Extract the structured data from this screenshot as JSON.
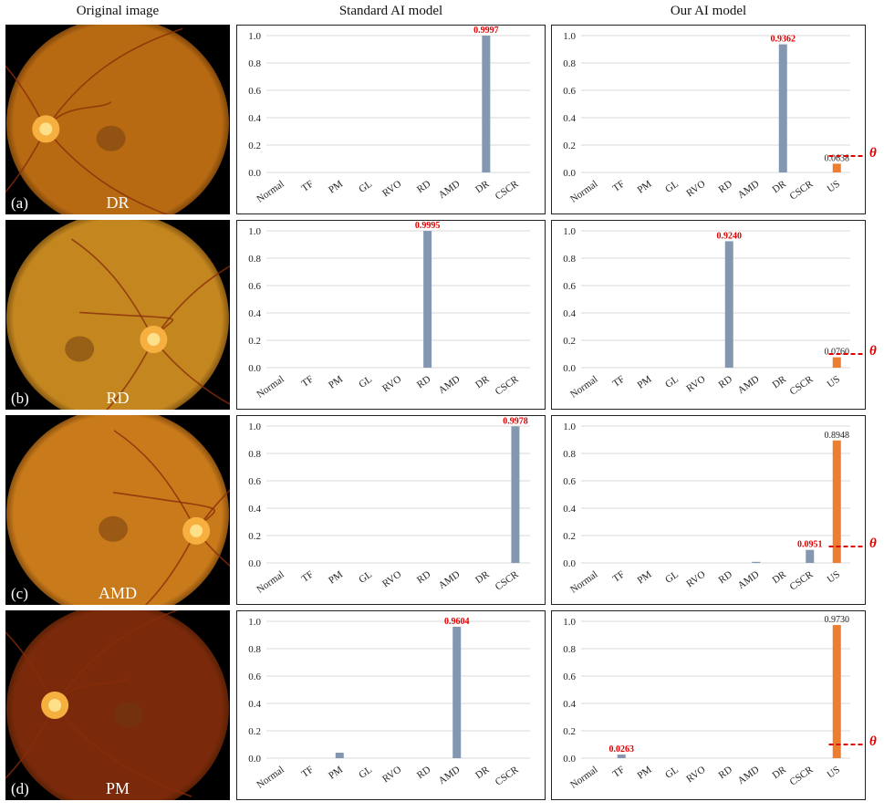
{
  "headers": {
    "original": "Original image",
    "standard": "Standard AI model",
    "ours": "Our AI model"
  },
  "colors": {
    "bar_standard": "#8497b0",
    "bar_unseen": "#ed7d31",
    "label_highlight": "#e00000",
    "threshold": "#e00000",
    "gridline": "#d9d9d9"
  },
  "threshold_symbol": "θ",
  "rows": [
    {
      "tag": "(a)",
      "diagnosis": "DR",
      "fundus": {
        "bg": "#b86a12",
        "disc_cx": 0.18,
        "disc_cy": 0.55,
        "macula_cx": 0.47,
        "macula_cy": 0.6
      }
    },
    {
      "tag": "(b)",
      "diagnosis": "RD",
      "fundus": {
        "bg": "#c4871f",
        "disc_cx": 0.66,
        "disc_cy": 0.63,
        "macula_cx": 0.33,
        "macula_cy": 0.68
      }
    },
    {
      "tag": "(c)",
      "diagnosis": "AMD",
      "fundus": {
        "bg": "#c97a1a",
        "disc_cx": 0.85,
        "disc_cy": 0.61,
        "macula_cx": 0.48,
        "macula_cy": 0.6
      }
    },
    {
      "tag": "(d)",
      "diagnosis": "PM",
      "fundus": {
        "bg": "#7a2a0a",
        "disc_cx": 0.22,
        "disc_cy": 0.5,
        "macula_cx": 0.55,
        "macula_cy": 0.55
      }
    }
  ],
  "chart_data": [
    {
      "type": "bar",
      "panel": "(a) Standard AI model",
      "categories": [
        "Normal",
        "TF",
        "PM",
        "GL",
        "RVO",
        "RD",
        "AMD",
        "DR",
        "CSCR"
      ],
      "values": [
        0,
        0,
        0,
        0,
        0,
        0,
        0,
        0.9997,
        0
      ],
      "data_labels": [
        {
          "index": 7,
          "text": "0.9997",
          "highlight": true
        }
      ],
      "ylim": [
        0,
        1.0
      ],
      "yticks": [
        "0.0",
        "0.2",
        "0.4",
        "0.6",
        "0.8",
        "1.0"
      ],
      "grid": true
    },
    {
      "type": "bar",
      "panel": "(a) Our AI model",
      "categories": [
        "Normal",
        "TF",
        "PM",
        "GL",
        "RVO",
        "RD",
        "AMD",
        "DR",
        "CSCR",
        "US"
      ],
      "values": [
        0,
        0,
        0,
        0,
        0,
        0,
        0,
        0.9362,
        0,
        0.0638
      ],
      "data_labels": [
        {
          "index": 7,
          "text": "0.9362",
          "highlight": true
        },
        {
          "index": 9,
          "text": "0.0638",
          "highlight": false
        }
      ],
      "threshold": 0.12,
      "ylim": [
        0,
        1.0
      ],
      "yticks": [
        "0.0",
        "0.2",
        "0.4",
        "0.6",
        "0.8",
        "1.0"
      ],
      "grid": true
    },
    {
      "type": "bar",
      "panel": "(b) Standard AI model",
      "categories": [
        "Normal",
        "TF",
        "PM",
        "GL",
        "RVO",
        "RD",
        "AMD",
        "DR",
        "CSCR"
      ],
      "values": [
        0,
        0,
        0,
        0,
        0,
        0.9995,
        0,
        0,
        0
      ],
      "data_labels": [
        {
          "index": 5,
          "text": "0.9995",
          "highlight": true
        }
      ],
      "ylim": [
        0,
        1.0
      ],
      "yticks": [
        "0.0",
        "0.2",
        "0.4",
        "0.6",
        "0.8",
        "1.0"
      ],
      "grid": true
    },
    {
      "type": "bar",
      "panel": "(b) Our AI model",
      "categories": [
        "Normal",
        "TF",
        "PM",
        "GL",
        "RVO",
        "RD",
        "AMD",
        "DR",
        "CSCR",
        "US"
      ],
      "values": [
        0,
        0,
        0,
        0,
        0,
        0.924,
        0,
        0,
        0,
        0.076
      ],
      "data_labels": [
        {
          "index": 5,
          "text": "0.9240",
          "highlight": true
        },
        {
          "index": 9,
          "text": "0.0760",
          "highlight": false
        }
      ],
      "threshold": 0.1,
      "ylim": [
        0,
        1.0
      ],
      "yticks": [
        "0.0",
        "0.2",
        "0.4",
        "0.6",
        "0.8",
        "1.0"
      ],
      "grid": true
    },
    {
      "type": "bar",
      "panel": "(c) Standard AI model",
      "categories": [
        "Normal",
        "TF",
        "PM",
        "GL",
        "RVO",
        "RD",
        "AMD",
        "DR",
        "CSCR"
      ],
      "values": [
        0,
        0,
        0,
        0,
        0,
        0,
        0,
        0,
        0.9978
      ],
      "data_labels": [
        {
          "index": 8,
          "text": "0.9978",
          "highlight": true
        }
      ],
      "ylim": [
        0,
        1.0
      ],
      "yticks": [
        "0.0",
        "0.2",
        "0.4",
        "0.6",
        "0.8",
        "1.0"
      ],
      "grid": true
    },
    {
      "type": "bar",
      "panel": "(c) Our AI model",
      "categories": [
        "Normal",
        "TF",
        "PM",
        "GL",
        "RVO",
        "RD",
        "AMD",
        "DR",
        "CSCR",
        "US"
      ],
      "values": [
        0,
        0,
        0,
        0,
        0,
        0,
        0.008,
        0,
        0.0951,
        0.8948
      ],
      "data_labels": [
        {
          "index": 8,
          "text": "0.0951",
          "highlight": true
        },
        {
          "index": 9,
          "text": "0.8948",
          "highlight": false
        }
      ],
      "threshold": 0.12,
      "ylim": [
        0,
        1.0
      ],
      "yticks": [
        "0.0",
        "0.2",
        "0.4",
        "0.6",
        "0.8",
        "1.0"
      ],
      "grid": true
    },
    {
      "type": "bar",
      "panel": "(d) Standard AI model",
      "categories": [
        "Normal",
        "TF",
        "PM",
        "GL",
        "RVO",
        "RD",
        "AMD",
        "DR",
        "CSCR"
      ],
      "values": [
        0,
        0,
        0.04,
        0,
        0,
        0,
        0.9604,
        0,
        0
      ],
      "data_labels": [
        {
          "index": 6,
          "text": "0.9604",
          "highlight": true
        }
      ],
      "ylim": [
        0,
        1.0
      ],
      "yticks": [
        "0.0",
        "0.2",
        "0.4",
        "0.6",
        "0.8",
        "1.0"
      ],
      "grid": true
    },
    {
      "type": "bar",
      "panel": "(d) Our AI model",
      "categories": [
        "Normal",
        "TF",
        "PM",
        "GL",
        "RVO",
        "RD",
        "AMD",
        "DR",
        "CSCR",
        "US"
      ],
      "values": [
        0,
        0.0263,
        0,
        0,
        0,
        0,
        0,
        0,
        0,
        0.973
      ],
      "data_labels": [
        {
          "index": 1,
          "text": "0.0263",
          "highlight": true
        },
        {
          "index": 9,
          "text": "0.9730",
          "highlight": false
        }
      ],
      "threshold": 0.1,
      "ylim": [
        0,
        1.0
      ],
      "yticks": [
        "0.0",
        "0.2",
        "0.4",
        "0.6",
        "0.8",
        "1.0"
      ],
      "grid": true
    }
  ]
}
